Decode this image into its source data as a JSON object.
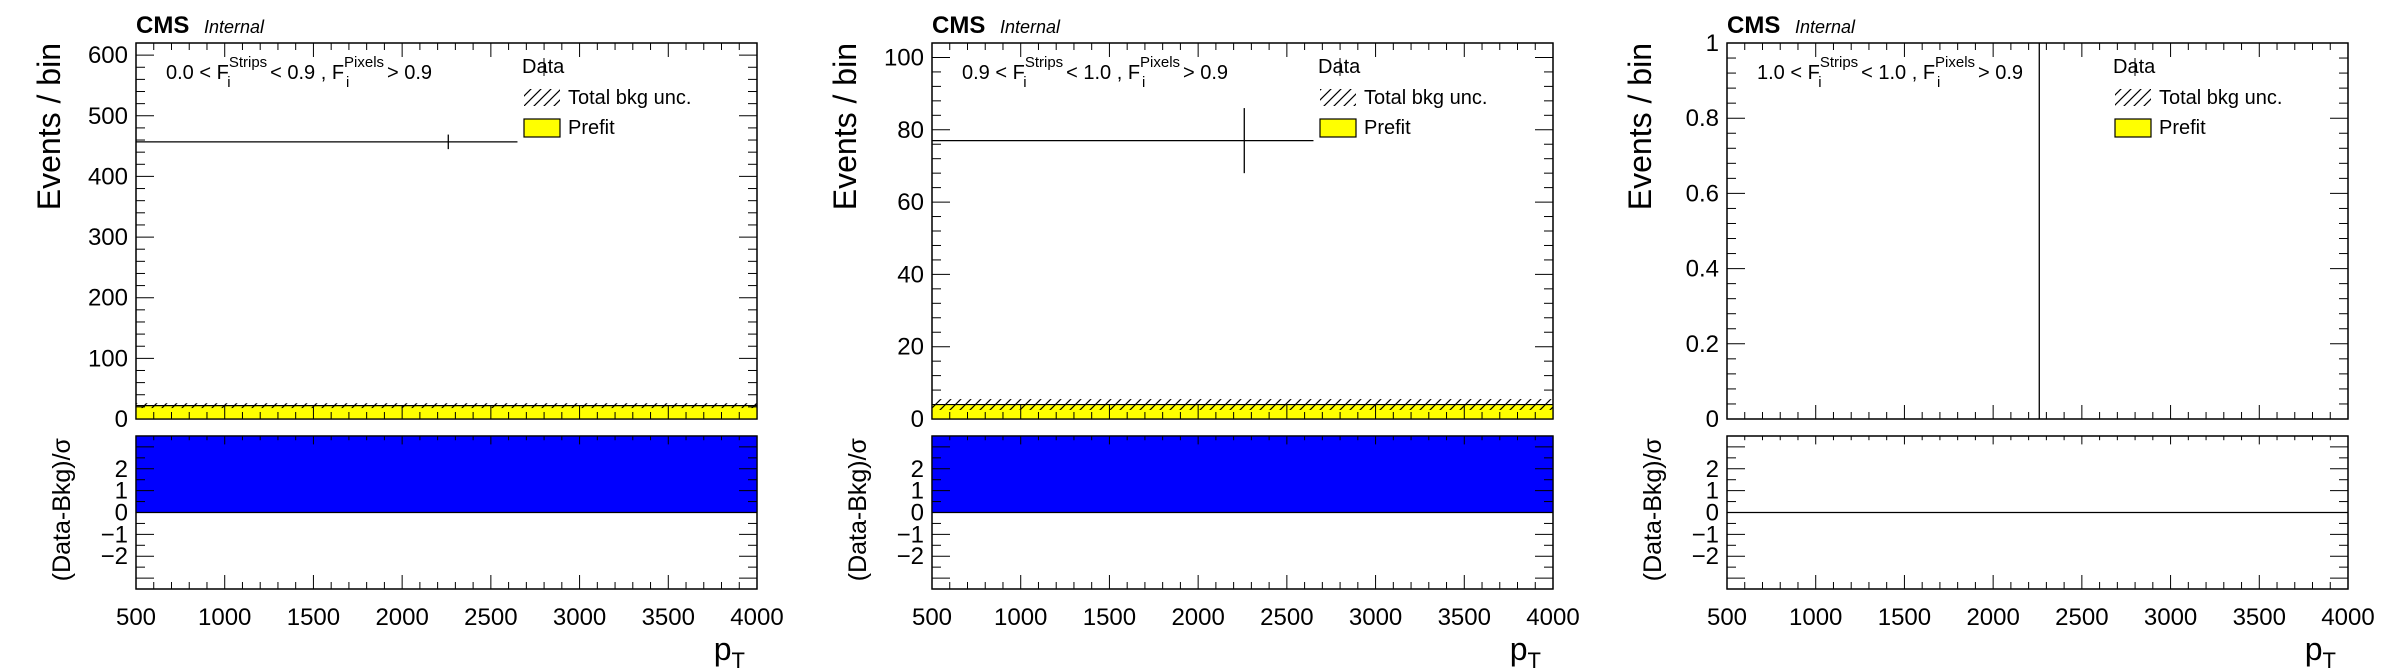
{
  "colors": {
    "prefit_fill": "#ffff00",
    "ratio_fill": "#0000ff",
    "axis": "#000000",
    "background": "#ffffff"
  },
  "chart_data": [
    {
      "type": "bar",
      "panel": "left",
      "experiment": "CMS",
      "status": "Internal",
      "cut_label": {
        "low": "0.0",
        "op1": "<",
        "var1": "F",
        "sub1": "i",
        "sup1": "Strips",
        "op2": "< 0.9 ,",
        "var2": "F",
        "sub2": "i",
        "sup2": "Pixels",
        "op3": "> 0.9"
      },
      "ylabel": "Events / bin",
      "xlabel": "p",
      "xlabel_sub": "T",
      "ratio_ylabel": "(Data-Bkg)/σ",
      "xlim": [
        500,
        4000
      ],
      "ylim": [
        0,
        620
      ],
      "yticks": [
        0,
        100,
        200,
        300,
        400,
        500,
        600
      ],
      "ytick_labels": [
        "0",
        "100",
        "200",
        "300",
        "400",
        "500",
        "600"
      ],
      "xticks": [
        500,
        1000,
        1500,
        2000,
        2500,
        3000,
        3500,
        4000
      ],
      "xtick_labels": [
        "500",
        "1000",
        "1500",
        "2000",
        "2500",
        "3000",
        "3500",
        "4000"
      ],
      "ratio_ylim": [
        -3.5,
        3.5
      ],
      "ratio_yticks": [
        -2,
        -1,
        0,
        1,
        2
      ],
      "ratio_ytick_labels": [
        "−2",
        "−1",
        "0",
        "1",
        "2"
      ],
      "legend": {
        "position": "top-right",
        "entries": [
          "Data",
          "Total bkg unc.",
          "Prefit"
        ]
      },
      "data": {
        "x_low": 500,
        "x_high": 2650,
        "x_center": 2260,
        "y": 457,
        "y_err": 12
      },
      "prefit": {
        "value": 22,
        "unc": 4
      },
      "ratio": {
        "low": 0,
        "high": 3.5
      }
    },
    {
      "type": "bar",
      "panel": "middle",
      "experiment": "CMS",
      "status": "Internal",
      "cut_label": {
        "low": "0.9",
        "op1": "<",
        "var1": "F",
        "sub1": "i",
        "sup1": "Strips",
        "op2": "< 1.0 ,",
        "var2": "F",
        "sub2": "i",
        "sup2": "Pixels",
        "op3": "> 0.9"
      },
      "ylabel": "Events / bin",
      "xlabel": "p",
      "xlabel_sub": "T",
      "ratio_ylabel": "(Data-Bkg)/σ",
      "xlim": [
        500,
        4000
      ],
      "ylim": [
        0,
        104
      ],
      "yticks": [
        0,
        20,
        40,
        60,
        80,
        100
      ],
      "ytick_labels": [
        "0",
        "20",
        "40",
        "60",
        "80",
        "100"
      ],
      "xticks": [
        500,
        1000,
        1500,
        2000,
        2500,
        3000,
        3500,
        4000
      ],
      "xtick_labels": [
        "500",
        "1000",
        "1500",
        "2000",
        "2500",
        "3000",
        "3500",
        "4000"
      ],
      "ratio_ylim": [
        -3.5,
        3.5
      ],
      "ratio_yticks": [
        -2,
        -1,
        0,
        1,
        2
      ],
      "ratio_ytick_labels": [
        "−2",
        "−1",
        "0",
        "1",
        "2"
      ],
      "legend": {
        "position": "top-right",
        "entries": [
          "Data",
          "Total bkg unc.",
          "Prefit"
        ]
      },
      "data": {
        "x_low": 500,
        "x_high": 2650,
        "x_center": 2260,
        "y": 77,
        "y_err": 9
      },
      "prefit": {
        "value": 4,
        "unc": 1.5
      },
      "ratio": {
        "low": 0,
        "high": 3.5
      }
    },
    {
      "type": "bar",
      "panel": "right",
      "experiment": "CMS",
      "status": "Internal",
      "cut_label": {
        "low": "1.0",
        "op1": "<",
        "var1": "F",
        "sub1": "i",
        "sup1": "Strips",
        "op2": "< 1.0 ,",
        "var2": "F",
        "sub2": "i",
        "sup2": "Pixels",
        "op3": "> 0.9"
      },
      "ylabel": "Events / bin",
      "xlabel": "p",
      "xlabel_sub": "T",
      "ratio_ylabel": "(Data-Bkg)/σ",
      "xlim": [
        500,
        4000
      ],
      "ylim": [
        0,
        1
      ],
      "yticks": [
        0,
        0.2,
        0.4,
        0.6,
        0.8,
        1
      ],
      "ytick_labels": [
        "0",
        "0.2",
        "0.4",
        "0.6",
        "0.8",
        "1"
      ],
      "xticks": [
        500,
        1000,
        1500,
        2000,
        2500,
        3000,
        3500,
        4000
      ],
      "xtick_labels": [
        "500",
        "1000",
        "1500",
        "2000",
        "2500",
        "3000",
        "3500",
        "4000"
      ],
      "ratio_ylim": [
        -3.5,
        3.5
      ],
      "ratio_yticks": [
        -2,
        -1,
        0,
        1,
        2
      ],
      "ratio_ytick_labels": [
        "−2",
        "−1",
        "0",
        "1",
        "2"
      ],
      "legend": {
        "position": "top-right",
        "entries": [
          "Data",
          "Total bkg unc.",
          "Prefit"
        ]
      },
      "data": {
        "x_low": 2260,
        "x_high": 2260,
        "x_center": 2260,
        "y": 0,
        "y_err": 1
      },
      "prefit": {
        "value": 0,
        "unc": 0
      },
      "ratio": {
        "low": 0,
        "high": 0
      }
    }
  ]
}
